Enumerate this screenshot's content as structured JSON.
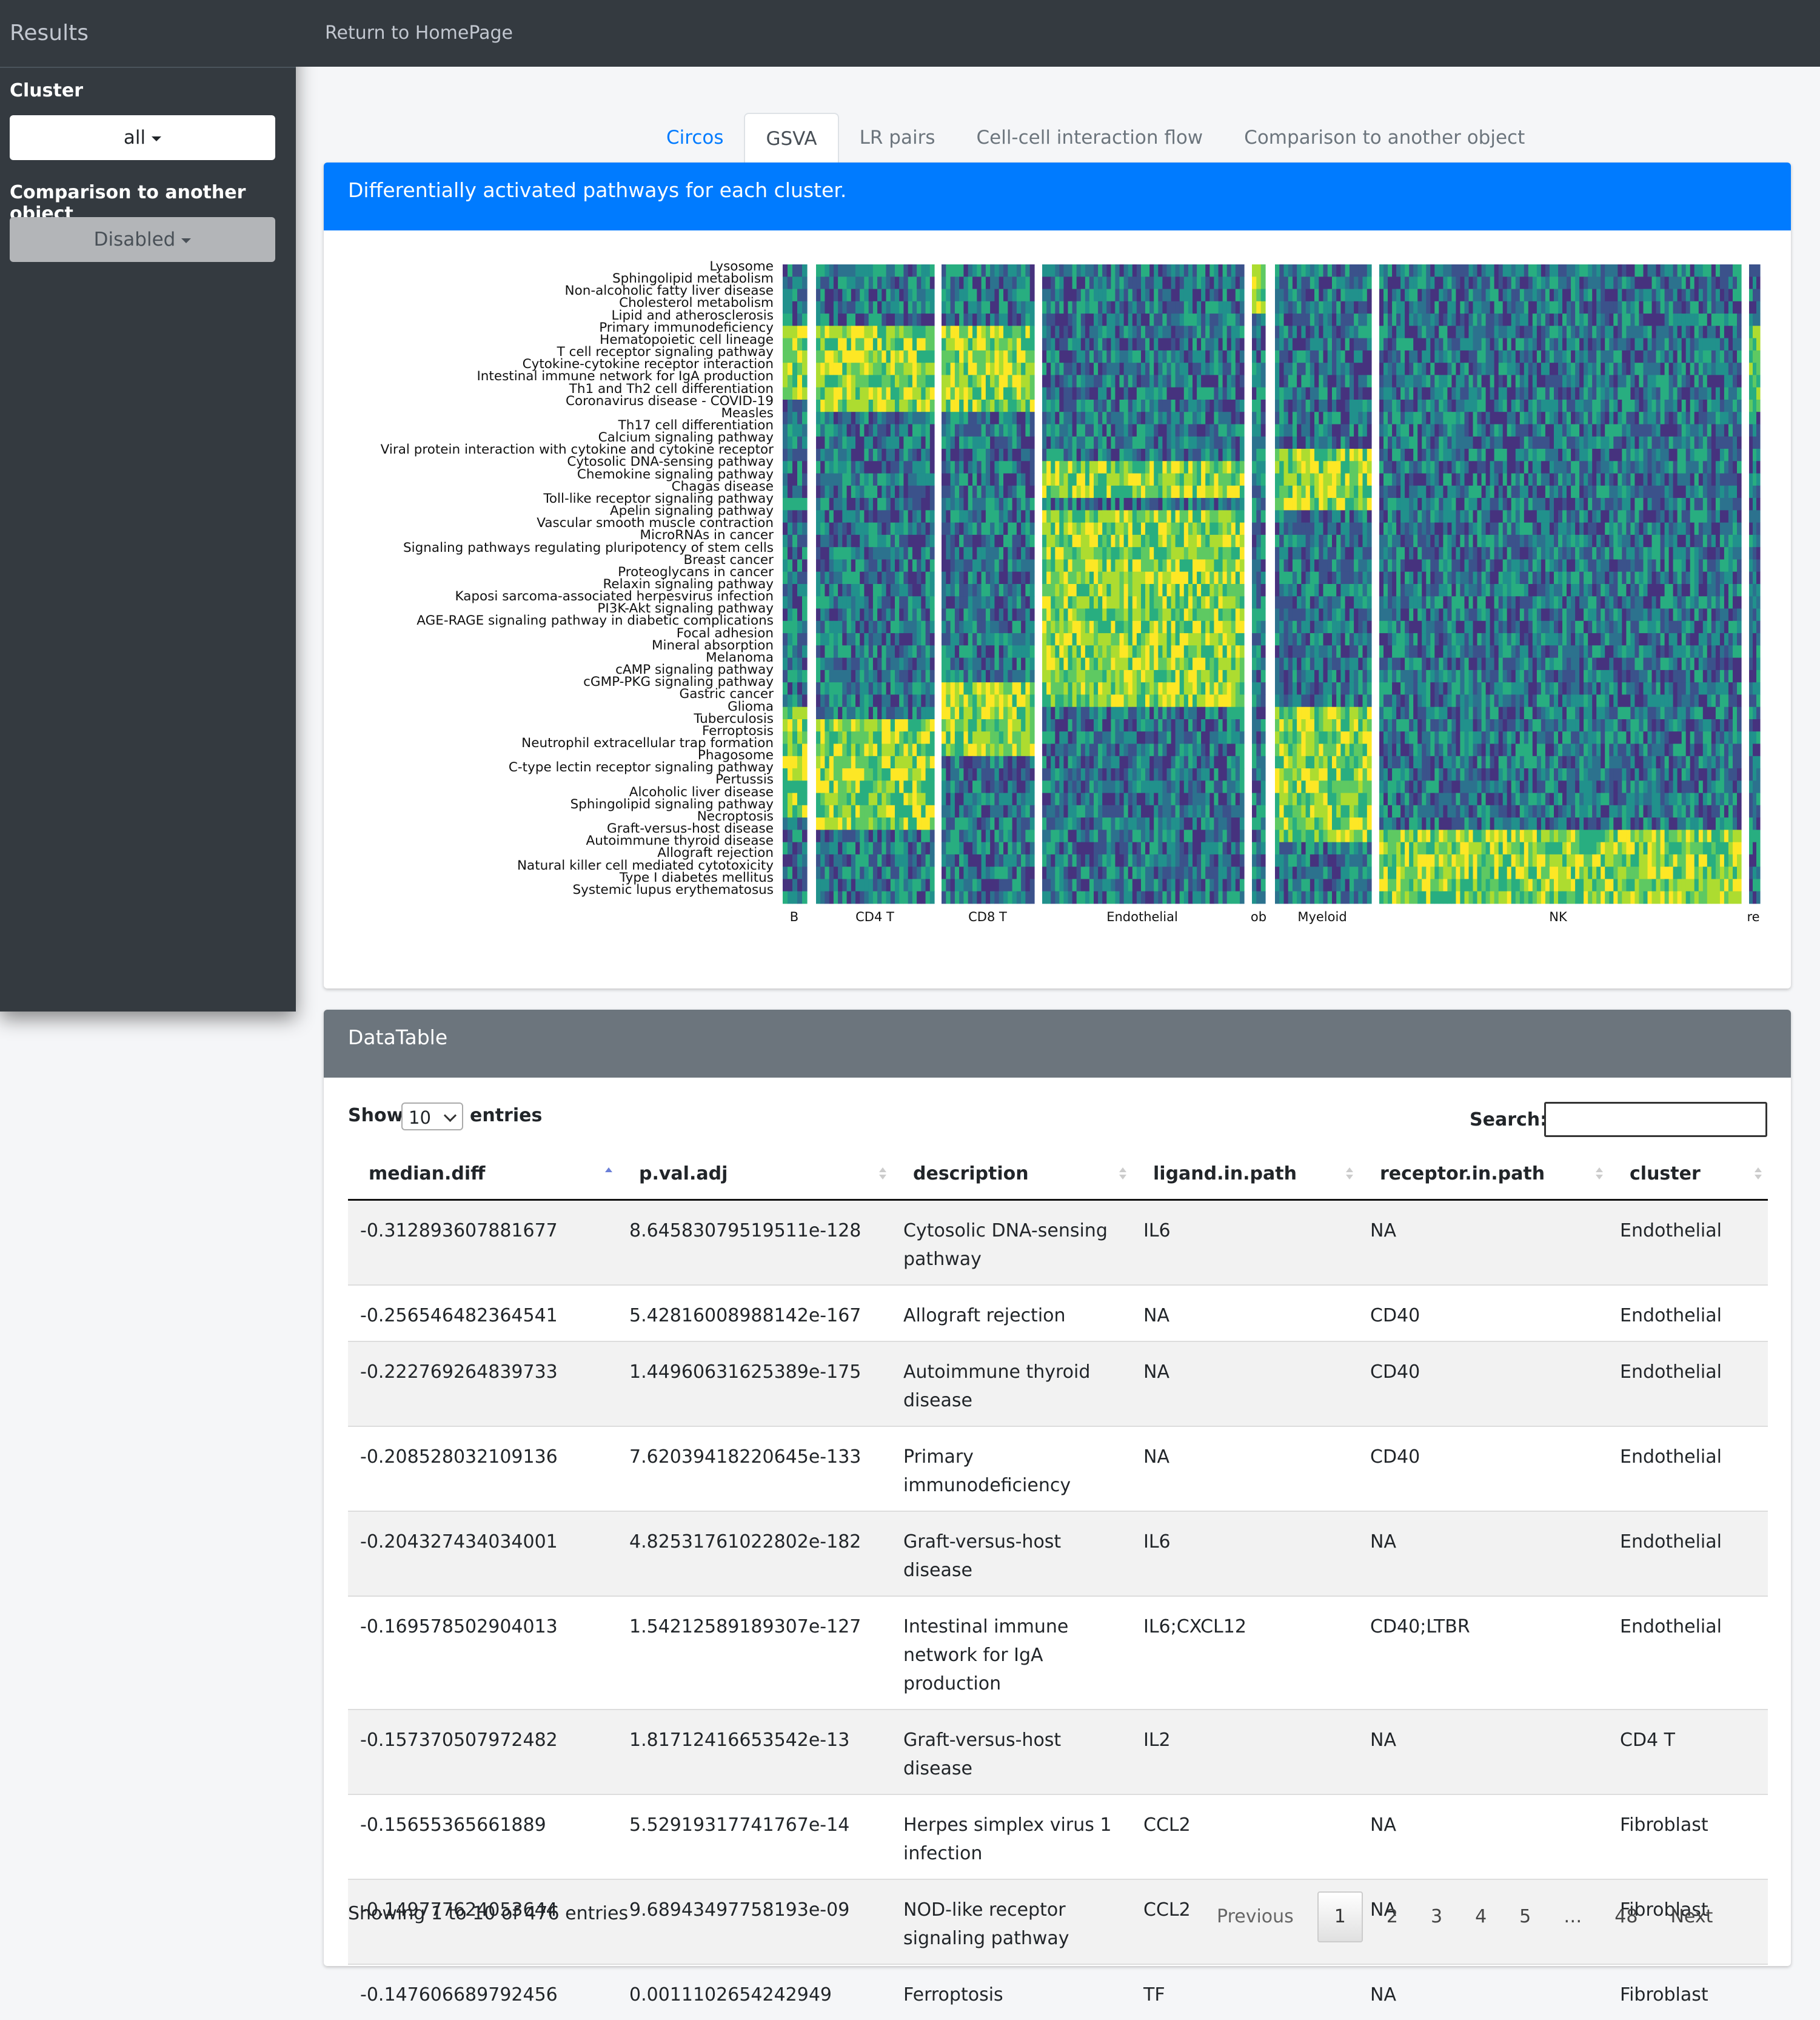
{
  "sidebar": {
    "title": "Results",
    "cluster_label": "Cluster",
    "cluster_value": "all",
    "compare_label": "Comparison to another object",
    "compare_value": "Disabled"
  },
  "topbar": {
    "link": "Return to HomePage"
  },
  "tabs": [
    "Circos",
    "GSVA",
    "LR pairs",
    "Cell-cell interaction flow",
    "Comparison to another object"
  ],
  "heatmap_card": {
    "title": "Differentially activated pathways for each cluster.",
    "pathways": [
      "Lysosome",
      "Sphingolipid metabolism",
      "Non-alcoholic fatty liver disease",
      "Cholesterol metabolism",
      "Lipid and atherosclerosis",
      "Primary immunodeficiency",
      "Hematopoietic cell lineage",
      "T cell receptor signaling pathway",
      "Cytokine-cytokine receptor interaction",
      "Intestinal immune network for IgA production",
      "Th1 and Th2 cell differentiation",
      "Coronavirus disease - COVID-19",
      "Measles",
      "Th17 cell differentiation",
      "Calcium signaling pathway",
      "Viral protein interaction with cytokine and cytokine receptor",
      "Cytosolic DNA-sensing pathway",
      "Chemokine signaling pathway",
      "Chagas disease",
      "Toll-like receptor signaling pathway",
      "Apelin signaling pathway",
      "Vascular smooth muscle contraction",
      "MicroRNAs in cancer",
      "Signaling pathways regulating pluripotency of stem cells",
      "Breast cancer",
      "Proteoglycans in cancer",
      "Relaxin signaling pathway",
      "Kaposi sarcoma-associated herpesvirus infection",
      "PI3K-Akt signaling pathway",
      "AGE-RAGE signaling pathway in diabetic complications",
      "Focal adhesion",
      "Mineral absorption",
      "Melanoma",
      "cAMP signaling pathway",
      "cGMP-PKG signaling pathway",
      "Gastric cancer",
      "Glioma",
      "Tuberculosis",
      "Ferroptosis",
      "Neutrophil extracellular trap formation",
      "Phagosome",
      "C-type lectin receptor signaling pathway",
      "Pertussis",
      "Alcoholic liver disease",
      "Sphingolipid signaling pathway",
      "Necroptosis",
      "Graft-versus-host disease",
      "Autoimmune thyroid disease",
      "Allograft rejection",
      "Natural killer cell mediated cytotoxicity",
      "Type I diabetes mellitus",
      "Systemic lupus erythematosus"
    ],
    "clusters": [
      "B",
      "CD4 T",
      "CD8 T",
      "Endothelial",
      "ob",
      "Myeloid",
      "NK",
      "re"
    ]
  },
  "datatable": {
    "title": "DataTable",
    "show_label": "Show",
    "entries_label": "entries",
    "length_value": "10",
    "search_label": "Search:",
    "columns": [
      "median.diff",
      "p.val.adj",
      "description",
      "ligand.in.path",
      "receptor.in.path",
      "cluster"
    ],
    "rows": [
      [
        "-0.312893607881677",
        "8.64583079519511e-128",
        "Cytosolic DNA-sensing pathway",
        "IL6",
        "NA",
        "Endothelial"
      ],
      [
        "-0.256546482364541",
        "5.42816008988142e-167",
        "Allograft rejection",
        "NA",
        "CD40",
        "Endothelial"
      ],
      [
        "-0.222769264839733",
        "1.44960631625389e-175",
        "Autoimmune thyroid disease",
        "NA",
        "CD40",
        "Endothelial"
      ],
      [
        "-0.208528032109136",
        "7.62039418220645e-133",
        "Primary immunodeficiency",
        "NA",
        "CD40",
        "Endothelial"
      ],
      [
        "-0.204327434034001",
        "4.82531761022802e-182",
        "Graft-versus-host disease",
        "IL6",
        "NA",
        "Endothelial"
      ],
      [
        "-0.169578502904013",
        "1.54212589189307e-127",
        "Intestinal immune network for IgA production",
        "IL6;CXCL12",
        "CD40;LTBR",
        "Endothelial"
      ],
      [
        "-0.157370507972482",
        "1.81712416653542e-13",
        "Graft-versus-host disease",
        "IL2",
        "NA",
        "CD4 T"
      ],
      [
        "-0.15655365661889",
        "5.52919317741767e-14",
        "Herpes simplex virus 1 infection",
        "CCL2",
        "NA",
        "Fibroblast"
      ],
      [
        "-0.149777624053644",
        "9.68943497758193e-09",
        "NOD-like receptor signaling pathway",
        "CCL2",
        "NA",
        "Fibroblast"
      ],
      [
        "-0.147606689792456",
        "0.0011102654242949",
        "Ferroptosis",
        "TF",
        "NA",
        "Fibroblast"
      ]
    ],
    "info": "Showing 1 to 10 of 476 entries",
    "pager": [
      "Previous",
      "1",
      "2",
      "3",
      "4",
      "5",
      "…",
      "48",
      "Next"
    ]
  }
}
